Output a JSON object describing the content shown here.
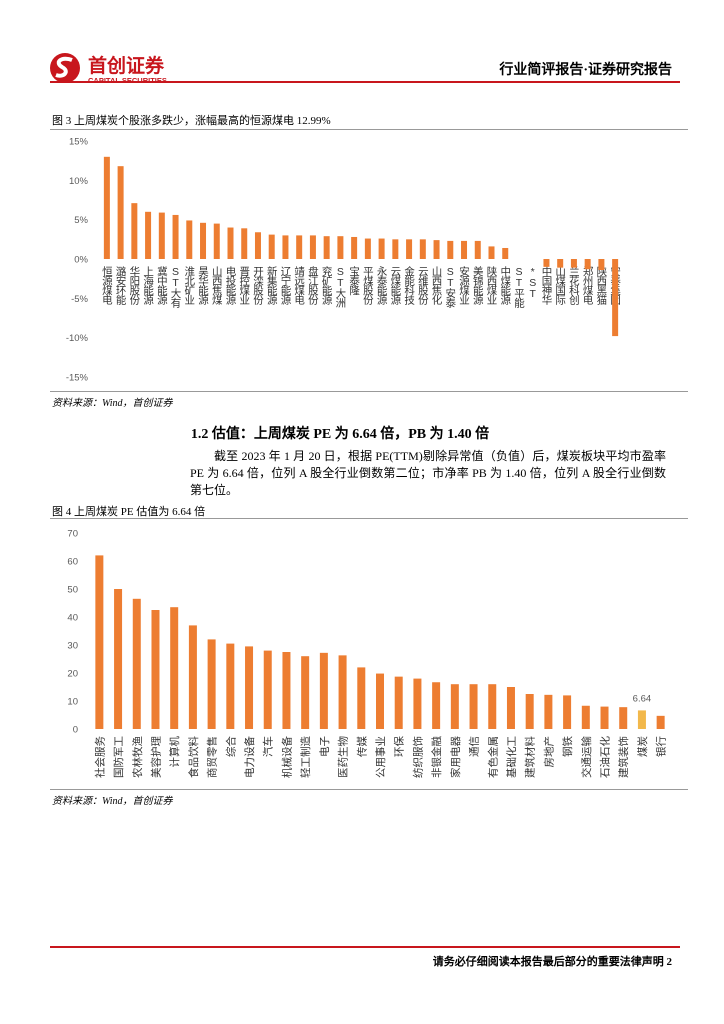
{
  "header": {
    "logo_cn": "首创证券",
    "logo_en": "CAPITAL SECURITIES",
    "title": "行业简评报告·证券研究报告"
  },
  "chart_data": [
    {
      "type": "bar",
      "title": "图 3 上周煤炭个股涨多跌少，涨幅最高的恒源煤电 12.99%",
      "source": "资料来源：Wind，首创证券",
      "label_style": "vertical",
      "color": "#ed7d31",
      "categories": [
        "恒源煤电",
        "潞安环能",
        "华阳股份",
        "上海能源",
        "冀中能源",
        "ST大有",
        "淮北矿业",
        "昊华能源",
        "山西焦煤",
        "电投能源",
        "晋控煤业",
        "开滦股份",
        "新集能源",
        "辽宁能源",
        "靖远煤电",
        "盘江股份",
        "兖矿能源",
        "ST大洲",
        "宝泰隆",
        "平煤股份",
        "永泰能源",
        "云煤能源",
        "金能科技",
        "云维股份",
        "山西焦化",
        "ST安泰",
        "安源煤业",
        "美锦能源",
        "陕西煤业",
        "中煤能源",
        "ST平能",
        "*ST",
        "中国神华",
        "山煤国际",
        "兰花科创",
        "郑州煤电",
        "陕西黑猫",
        "安泰集团"
      ],
      "values": [
        12.99,
        11.8,
        7.1,
        6.0,
        5.9,
        5.6,
        4.9,
        4.6,
        4.5,
        4.0,
        3.9,
        3.4,
        3.1,
        3.0,
        3.0,
        3.0,
        2.9,
        2.9,
        2.8,
        2.6,
        2.6,
        2.5,
        2.5,
        2.5,
        2.4,
        2.3,
        2.3,
        2.3,
        1.6,
        1.4,
        0,
        0,
        -1.0,
        -1.1,
        -1.1,
        -1.3,
        -1.4,
        -9.8
      ],
      "ylim": [
        -15,
        15
      ],
      "yticks": [
        {
          "value": -15,
          "label": "-15%"
        },
        {
          "value": -10,
          "label": "-10%"
        },
        {
          "value": -5,
          "label": "-5%"
        },
        {
          "value": 0,
          "label": "0%"
        },
        {
          "value": 5,
          "label": "5%"
        },
        {
          "value": 10,
          "label": "10%"
        },
        {
          "value": 15,
          "label": "15%"
        }
      ],
      "grid": false
    },
    {
      "type": "bar",
      "title": "图 4 上周煤炭 PE 估值为 6.64 倍",
      "source": "资料来源：Wind，首创证券",
      "label_style": "rotated",
      "categories": [
        "社会服务",
        "国防军工",
        "农林牧渔",
        "美容护理",
        "计算机",
        "食品饮料",
        "商贸零售",
        "综合",
        "电力设备",
        "汽车",
        "机械设备",
        "轻工制造",
        "电子",
        "医药生物",
        "传媒",
        "公用事业",
        "环保",
        "纺织服饰",
        "非银金融",
        "家用电器",
        "通信",
        "有色金属",
        "基础化工",
        "建筑材料",
        "房地产",
        "钢铁",
        "交通运输",
        "石油石化",
        "建筑装饰",
        "煤炭",
        "银行"
      ],
      "values": [
        62,
        50,
        46.5,
        42.5,
        43.5,
        37,
        32,
        30.5,
        29.5,
        28,
        27.5,
        26,
        27.2,
        26.3,
        22,
        19.8,
        18.7,
        18,
        16.7,
        16,
        16,
        16,
        15,
        12.5,
        12.2,
        12,
        8.3,
        8,
        7.8,
        6.64,
        4.7
      ],
      "colors": [
        "#ed7d31",
        "#ed7d31",
        "#ed7d31",
        "#ed7d31",
        "#ed7d31",
        "#ed7d31",
        "#ed7d31",
        "#ed7d31",
        "#ed7d31",
        "#ed7d31",
        "#ed7d31",
        "#ed7d31",
        "#ed7d31",
        "#ed7d31",
        "#ed7d31",
        "#ed7d31",
        "#ed7d31",
        "#ed7d31",
        "#ed7d31",
        "#ed7d31",
        "#ed7d31",
        "#ed7d31",
        "#ed7d31",
        "#ed7d31",
        "#ed7d31",
        "#ed7d31",
        "#ed7d31",
        "#ed7d31",
        "#ed7d31",
        "#f2b84b",
        "#ed7d31"
      ],
      "labeled_points": [
        29
      ],
      "ylim": [
        0,
        70
      ],
      "yticks": [
        0,
        10,
        20,
        30,
        40,
        50,
        60,
        70
      ],
      "grid": false
    }
  ],
  "section": {
    "heading": "1.2 估值：上周煤炭 PE 为 6.64 倍，PB 为 1.40 倍",
    "paragraph": "截至 2023 年 1 月 20 日，根据 PE(TTM)剔除异常值（负值）后，煤炭板块平均市盈率 PE 为 6.64 倍，位列 A 股全行业倒数第二位；市净率 PB 为 1.40 倍，位列 A 股全行业倒数第七位。"
  },
  "footer": {
    "notice": "请务必仔细阅读本报告最后部分的重要法律声明",
    "page": "2"
  }
}
